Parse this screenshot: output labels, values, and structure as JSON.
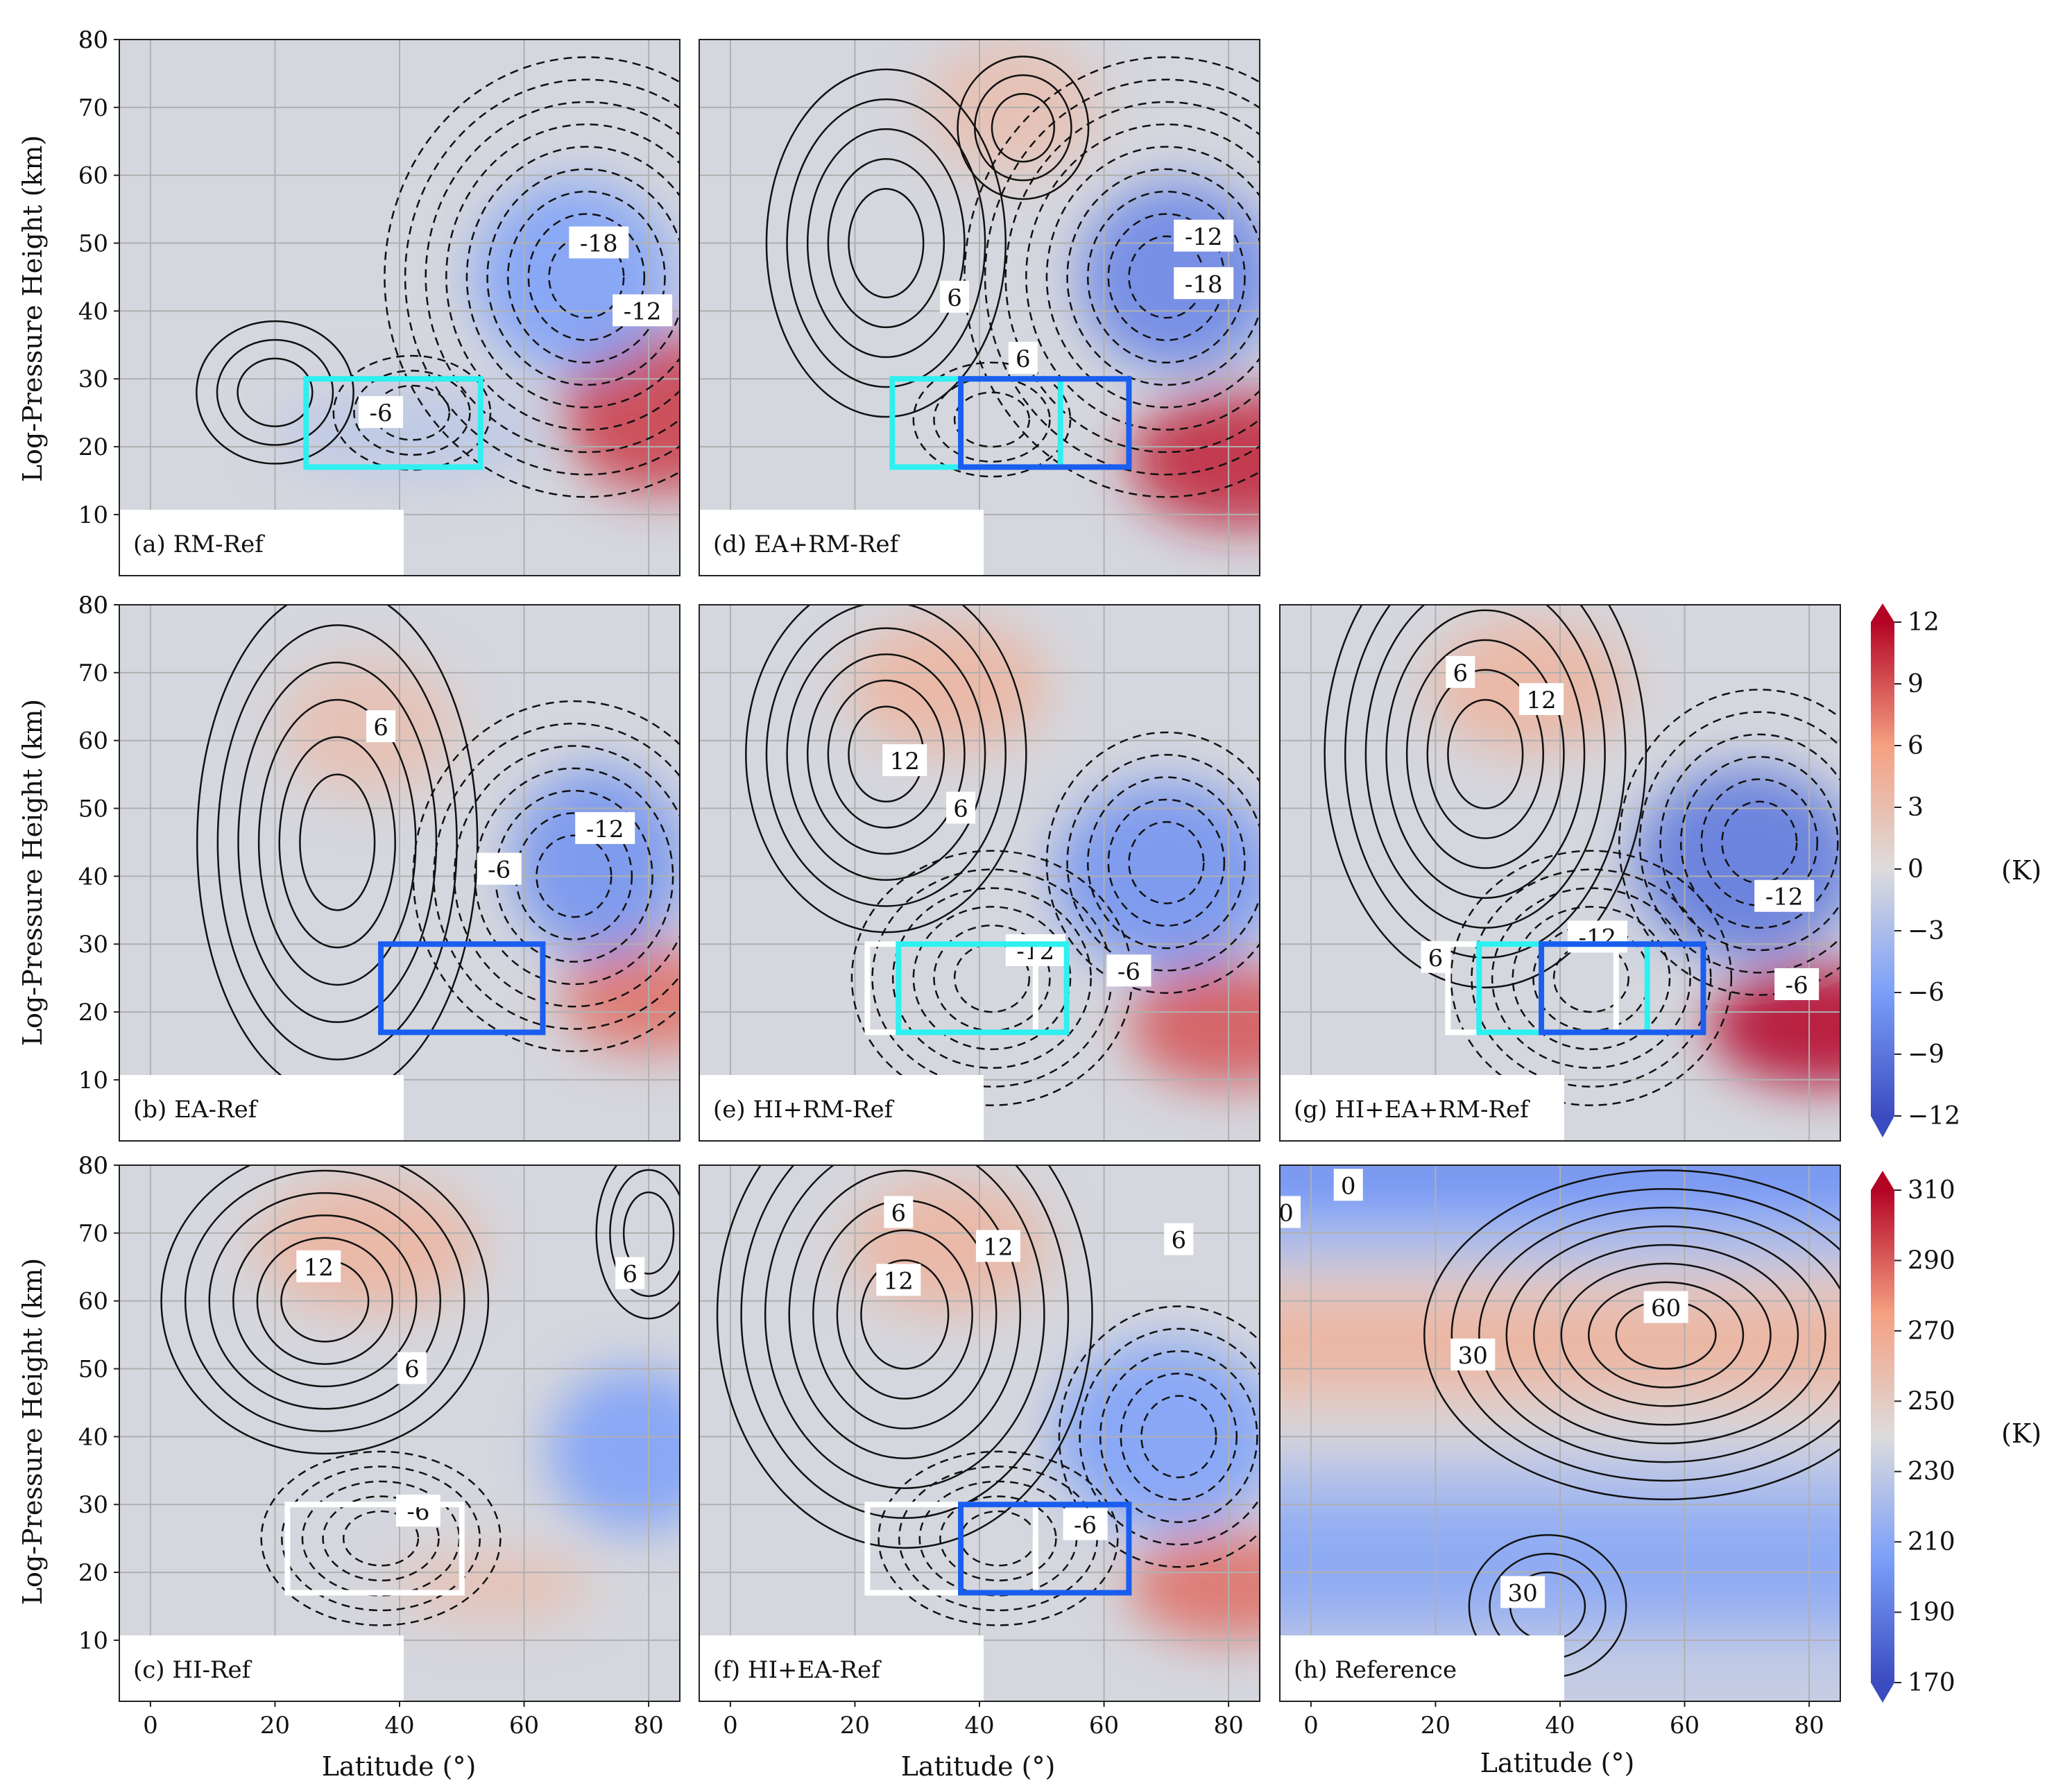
{
  "chart_data": {
    "type": "heatmap",
    "axis_labels": {
      "x": "Latitude (°)",
      "y": "Log-Pressure Height (km)"
    },
    "x_ticks": [
      "0",
      "20",
      "40",
      "60",
      "80"
    ],
    "y_ticks": [
      "10",
      "20",
      "30",
      "40",
      "50",
      "60",
      "70",
      "80"
    ],
    "xlim": [
      -5,
      85
    ],
    "ylim": [
      1,
      80
    ],
    "grid": true,
    "colorbars": [
      {
        "unit": "(K)",
        "ticks": [
          "12",
          "9",
          "6",
          "3",
          "0",
          "−3",
          "−6",
          "−9",
          "−12"
        ],
        "range": [
          -12,
          12
        ],
        "applies_to": "anomaly panels a-g"
      },
      {
        "unit": "(K)",
        "ticks": [
          "310",
          "290",
          "270",
          "250",
          "230",
          "210",
          "190",
          "170"
        ],
        "range": [
          170,
          310
        ],
        "applies_to": "panel h"
      }
    ],
    "panels": [
      {
        "label": "(a) RM-Ref",
        "fill_blobs": [
          {
            "lat": 82,
            "z": 25,
            "rlat": 16,
            "rz": 12,
            "value": 10
          },
          {
            "lat": 68,
            "z": 45,
            "rlat": 16,
            "rz": 14,
            "value": -6
          },
          {
            "lat": 42,
            "z": 22,
            "rlat": 22,
            "rz": 7,
            "value": -2
          }
        ],
        "contour_centers": [
          {
            "lat": 20,
            "z": 28,
            "rlat": 6,
            "rz": 5,
            "n": 3,
            "sign": 1
          },
          {
            "lat": 70,
            "z": 45,
            "rlat": 6,
            "rz": 6,
            "n": 9,
            "sign": -1
          },
          {
            "lat": 42,
            "z": 25,
            "rlat": 6,
            "rz": 4,
            "n": 3,
            "sign": -1
          }
        ],
        "contour_labels": [
          {
            "text": "-6",
            "lat": 37,
            "z": 25
          },
          {
            "text": "-18",
            "lat": 72,
            "z": 50
          },
          {
            "text": "-12",
            "lat": 79,
            "z": 40
          }
        ],
        "boxes": [
          {
            "lat0": 25,
            "lat1": 53,
            "z0": 17,
            "z1": 30,
            "color": "#2ef0f0"
          }
        ]
      },
      {
        "label": "(d) EA+RM-Ref",
        "fill_blobs": [
          {
            "lat": 82,
            "z": 18,
            "rlat": 18,
            "rz": 10,
            "value": 11
          },
          {
            "lat": 72,
            "z": 45,
            "rlat": 16,
            "rz": 14,
            "value": -8
          },
          {
            "lat": 45,
            "z": 70,
            "rlat": 14,
            "rz": 10,
            "value": 3
          }
        ],
        "contour_centers": [
          {
            "lat": 25,
            "z": 50,
            "rlat": 6,
            "rz": 8,
            "n": 5,
            "sign": 1
          },
          {
            "lat": 70,
            "z": 45,
            "rlat": 6,
            "rz": 6,
            "n": 9,
            "sign": -1
          },
          {
            "lat": 42,
            "z": 24,
            "rlat": 6,
            "rz": 4,
            "n": 3,
            "sign": -1
          },
          {
            "lat": 47,
            "z": 67,
            "rlat": 5,
            "rz": 5,
            "n": 3,
            "sign": 1
          }
        ],
        "contour_labels": [
          {
            "text": "6",
            "lat": 36,
            "z": 42
          },
          {
            "text": "6",
            "lat": 47,
            "z": 33
          },
          {
            "text": "-12",
            "lat": 76,
            "z": 51
          },
          {
            "text": "-18",
            "lat": 76,
            "z": 44
          }
        ],
        "boxes": [
          {
            "lat0": 26,
            "lat1": 53,
            "z0": 17,
            "z1": 30,
            "color": "#2ef0f0"
          },
          {
            "lat0": 37,
            "lat1": 64,
            "z0": 17,
            "z1": 30,
            "color": "#1a5ef0"
          }
        ]
      },
      {
        "label": "(b) EA-Ref",
        "fill_blobs": [
          {
            "lat": 80,
            "z": 22,
            "rlat": 14,
            "rz": 8,
            "value": 8
          },
          {
            "lat": 72,
            "z": 42,
            "rlat": 14,
            "rz": 14,
            "value": -7
          },
          {
            "lat": 35,
            "z": 62,
            "rlat": 14,
            "rz": 10,
            "value": 3
          }
        ],
        "contour_centers": [
          {
            "lat": 30,
            "z": 45,
            "rlat": 6,
            "rz": 10,
            "n": 6,
            "sign": 1
          },
          {
            "lat": 68,
            "z": 40,
            "rlat": 6,
            "rz": 6,
            "n": 7,
            "sign": -1
          }
        ],
        "contour_labels": [
          {
            "text": "6",
            "lat": 37,
            "z": 62
          },
          {
            "text": "-6",
            "lat": 56,
            "z": 41
          },
          {
            "text": "-12",
            "lat": 73,
            "z": 47
          }
        ],
        "boxes": [
          {
            "lat0": 37,
            "lat1": 63,
            "z0": 17,
            "z1": 30,
            "color": "#1a5ef0"
          }
        ]
      },
      {
        "label": "(e) HI+RM-Ref",
        "fill_blobs": [
          {
            "lat": 80,
            "z": 18,
            "rlat": 16,
            "rz": 9,
            "value": 9
          },
          {
            "lat": 70,
            "z": 40,
            "rlat": 18,
            "rz": 14,
            "value": -7
          },
          {
            "lat": 35,
            "z": 68,
            "rlat": 16,
            "rz": 10,
            "value": 4
          }
        ],
        "contour_centers": [
          {
            "lat": 25,
            "z": 58,
            "rlat": 6,
            "rz": 7,
            "n": 6,
            "sign": 1
          },
          {
            "lat": 42,
            "z": 25,
            "rlat": 6,
            "rz": 5,
            "n": 6,
            "sign": -1
          },
          {
            "lat": 70,
            "z": 42,
            "rlat": 6,
            "rz": 6,
            "n": 5,
            "sign": -1
          }
        ],
        "contour_labels": [
          {
            "text": "12",
            "lat": 28,
            "z": 57
          },
          {
            "text": "6",
            "lat": 37,
            "z": 50
          },
          {
            "text": "-12",
            "lat": 49,
            "z": 29
          },
          {
            "text": "-6",
            "lat": 64,
            "z": 26
          }
        ],
        "boxes": [
          {
            "lat0": 22,
            "lat1": 49,
            "z0": 17,
            "z1": 30,
            "color": "#ffffff"
          },
          {
            "lat0": 27,
            "lat1": 54,
            "z0": 17,
            "z1": 30,
            "color": "#2ef0f0"
          }
        ]
      },
      {
        "label": "(g) HI+EA+RM-Ref",
        "fill_blobs": [
          {
            "lat": 82,
            "z": 18,
            "rlat": 18,
            "rz": 9,
            "value": 12
          },
          {
            "lat": 70,
            "z": 42,
            "rlat": 18,
            "rz": 14,
            "value": -9
          },
          {
            "lat": 35,
            "z": 68,
            "rlat": 16,
            "rz": 10,
            "value": 4
          }
        ],
        "contour_centers": [
          {
            "lat": 28,
            "z": 58,
            "rlat": 6,
            "rz": 8,
            "n": 7,
            "sign": 1
          },
          {
            "lat": 45,
            "z": 25,
            "rlat": 6,
            "rz": 5,
            "n": 6,
            "sign": -1
          },
          {
            "lat": 72,
            "z": 45,
            "rlat": 6,
            "rz": 6,
            "n": 6,
            "sign": -1
          }
        ],
        "contour_labels": [
          {
            "text": "6",
            "lat": 24,
            "z": 70
          },
          {
            "text": "12",
            "lat": 37,
            "z": 66
          },
          {
            "text": "-12",
            "lat": 76,
            "z": 37
          },
          {
            "text": "6",
            "lat": 20,
            "z": 28
          },
          {
            "text": "-12",
            "lat": 46,
            "z": 31
          },
          {
            "text": "-6",
            "lat": 78,
            "z": 24
          }
        ],
        "boxes": [
          {
            "lat0": 22,
            "lat1": 49,
            "z0": 17,
            "z1": 30,
            "color": "#ffffff"
          },
          {
            "lat0": 27,
            "lat1": 54,
            "z0": 17,
            "z1": 30,
            "color": "#2ef0f0"
          },
          {
            "lat0": 37,
            "lat1": 63,
            "z0": 17,
            "z1": 30,
            "color": "#1a5ef0"
          }
        ]
      },
      {
        "label": "(c) HI-Ref",
        "fill_blobs": [
          {
            "lat": 78,
            "z": 38,
            "rlat": 14,
            "rz": 12,
            "value": -6
          },
          {
            "lat": 35,
            "z": 68,
            "rlat": 18,
            "rz": 10,
            "value": 4
          },
          {
            "lat": 55,
            "z": 18,
            "rlat": 16,
            "rz": 5,
            "value": 3
          }
        ],
        "contour_centers": [
          {
            "lat": 28,
            "z": 60,
            "rlat": 7,
            "rz": 6,
            "n": 6,
            "sign": 1
          },
          {
            "lat": 37,
            "z": 25,
            "rlat": 6,
            "rz": 4,
            "n": 5,
            "sign": -1
          },
          {
            "lat": 80,
            "z": 70,
            "rlat": 4,
            "rz": 6,
            "n": 3,
            "sign": 1
          }
        ],
        "contour_labels": [
          {
            "text": "12",
            "lat": 27,
            "z": 65
          },
          {
            "text": "6",
            "lat": 42,
            "z": 50
          },
          {
            "text": "6",
            "lat": 77,
            "z": 64
          },
          {
            "text": "-6",
            "lat": 43,
            "z": 29
          }
        ],
        "boxes": [
          {
            "lat0": 22,
            "lat1": 50,
            "z0": 17,
            "z1": 30,
            "color": "#ffffff"
          }
        ]
      },
      {
        "label": "(f) HI+EA-Ref",
        "fill_blobs": [
          {
            "lat": 80,
            "z": 18,
            "rlat": 16,
            "rz": 8,
            "value": 8
          },
          {
            "lat": 70,
            "z": 40,
            "rlat": 18,
            "rz": 14,
            "value": -6
          },
          {
            "lat": 35,
            "z": 68,
            "rlat": 16,
            "rz": 10,
            "value": 4
          }
        ],
        "contour_centers": [
          {
            "lat": 28,
            "z": 58,
            "rlat": 7,
            "rz": 8,
            "n": 7,
            "sign": 1
          },
          {
            "lat": 43,
            "z": 25,
            "rlat": 6,
            "rz": 4,
            "n": 5,
            "sign": -1
          },
          {
            "lat": 72,
            "z": 40,
            "rlat": 6,
            "rz": 6,
            "n": 5,
            "sign": -1
          }
        ],
        "contour_labels": [
          {
            "text": "6",
            "lat": 27,
            "z": 73
          },
          {
            "text": "12",
            "lat": 43,
            "z": 68
          },
          {
            "text": "12",
            "lat": 27,
            "z": 63
          },
          {
            "text": "6",
            "lat": 72,
            "z": 69
          },
          {
            "text": "-6",
            "lat": 57,
            "z": 27
          }
        ],
        "boxes": [
          {
            "lat0": 22,
            "lat1": 49,
            "z0": 17,
            "z1": 30,
            "color": "#ffffff"
          },
          {
            "lat0": 37,
            "lat1": 64,
            "z0": 17,
            "z1": 30,
            "color": "#1a5ef0"
          }
        ]
      },
      {
        "label": "(h) Reference",
        "fill_bands": [
          {
            "z": 78,
            "value": 195
          },
          {
            "z": 72,
            "value": 205
          },
          {
            "z": 65,
            "value": 225
          },
          {
            "z": 58,
            "value": 250
          },
          {
            "z": 52,
            "value": 265
          },
          {
            "z": 45,
            "value": 258
          },
          {
            "z": 38,
            "value": 238
          },
          {
            "z": 30,
            "value": 222
          },
          {
            "z": 22,
            "value": 210
          },
          {
            "z": 15,
            "value": 212
          },
          {
            "z": 8,
            "value": 220
          },
          {
            "z": 3,
            "value": 232
          }
        ],
        "contour_centers": [
          {
            "lat": 57,
            "z": 55,
            "rlat": 8,
            "rz": 5,
            "n": 8,
            "sign": 1
          },
          {
            "lat": 38,
            "z": 15,
            "rlat": 6,
            "rz": 5,
            "n": 3,
            "sign": 1
          }
        ],
        "contour_labels": [
          {
            "text": "0",
            "lat": 6,
            "z": 77
          },
          {
            "text": "60",
            "lat": 57,
            "z": 59
          },
          {
            "text": "30",
            "lat": 26,
            "z": 52
          },
          {
            "text": "30",
            "lat": 34,
            "z": 17
          },
          {
            "text": "0",
            "lat": -4,
            "z": 73
          }
        ],
        "boxes": []
      }
    ]
  }
}
